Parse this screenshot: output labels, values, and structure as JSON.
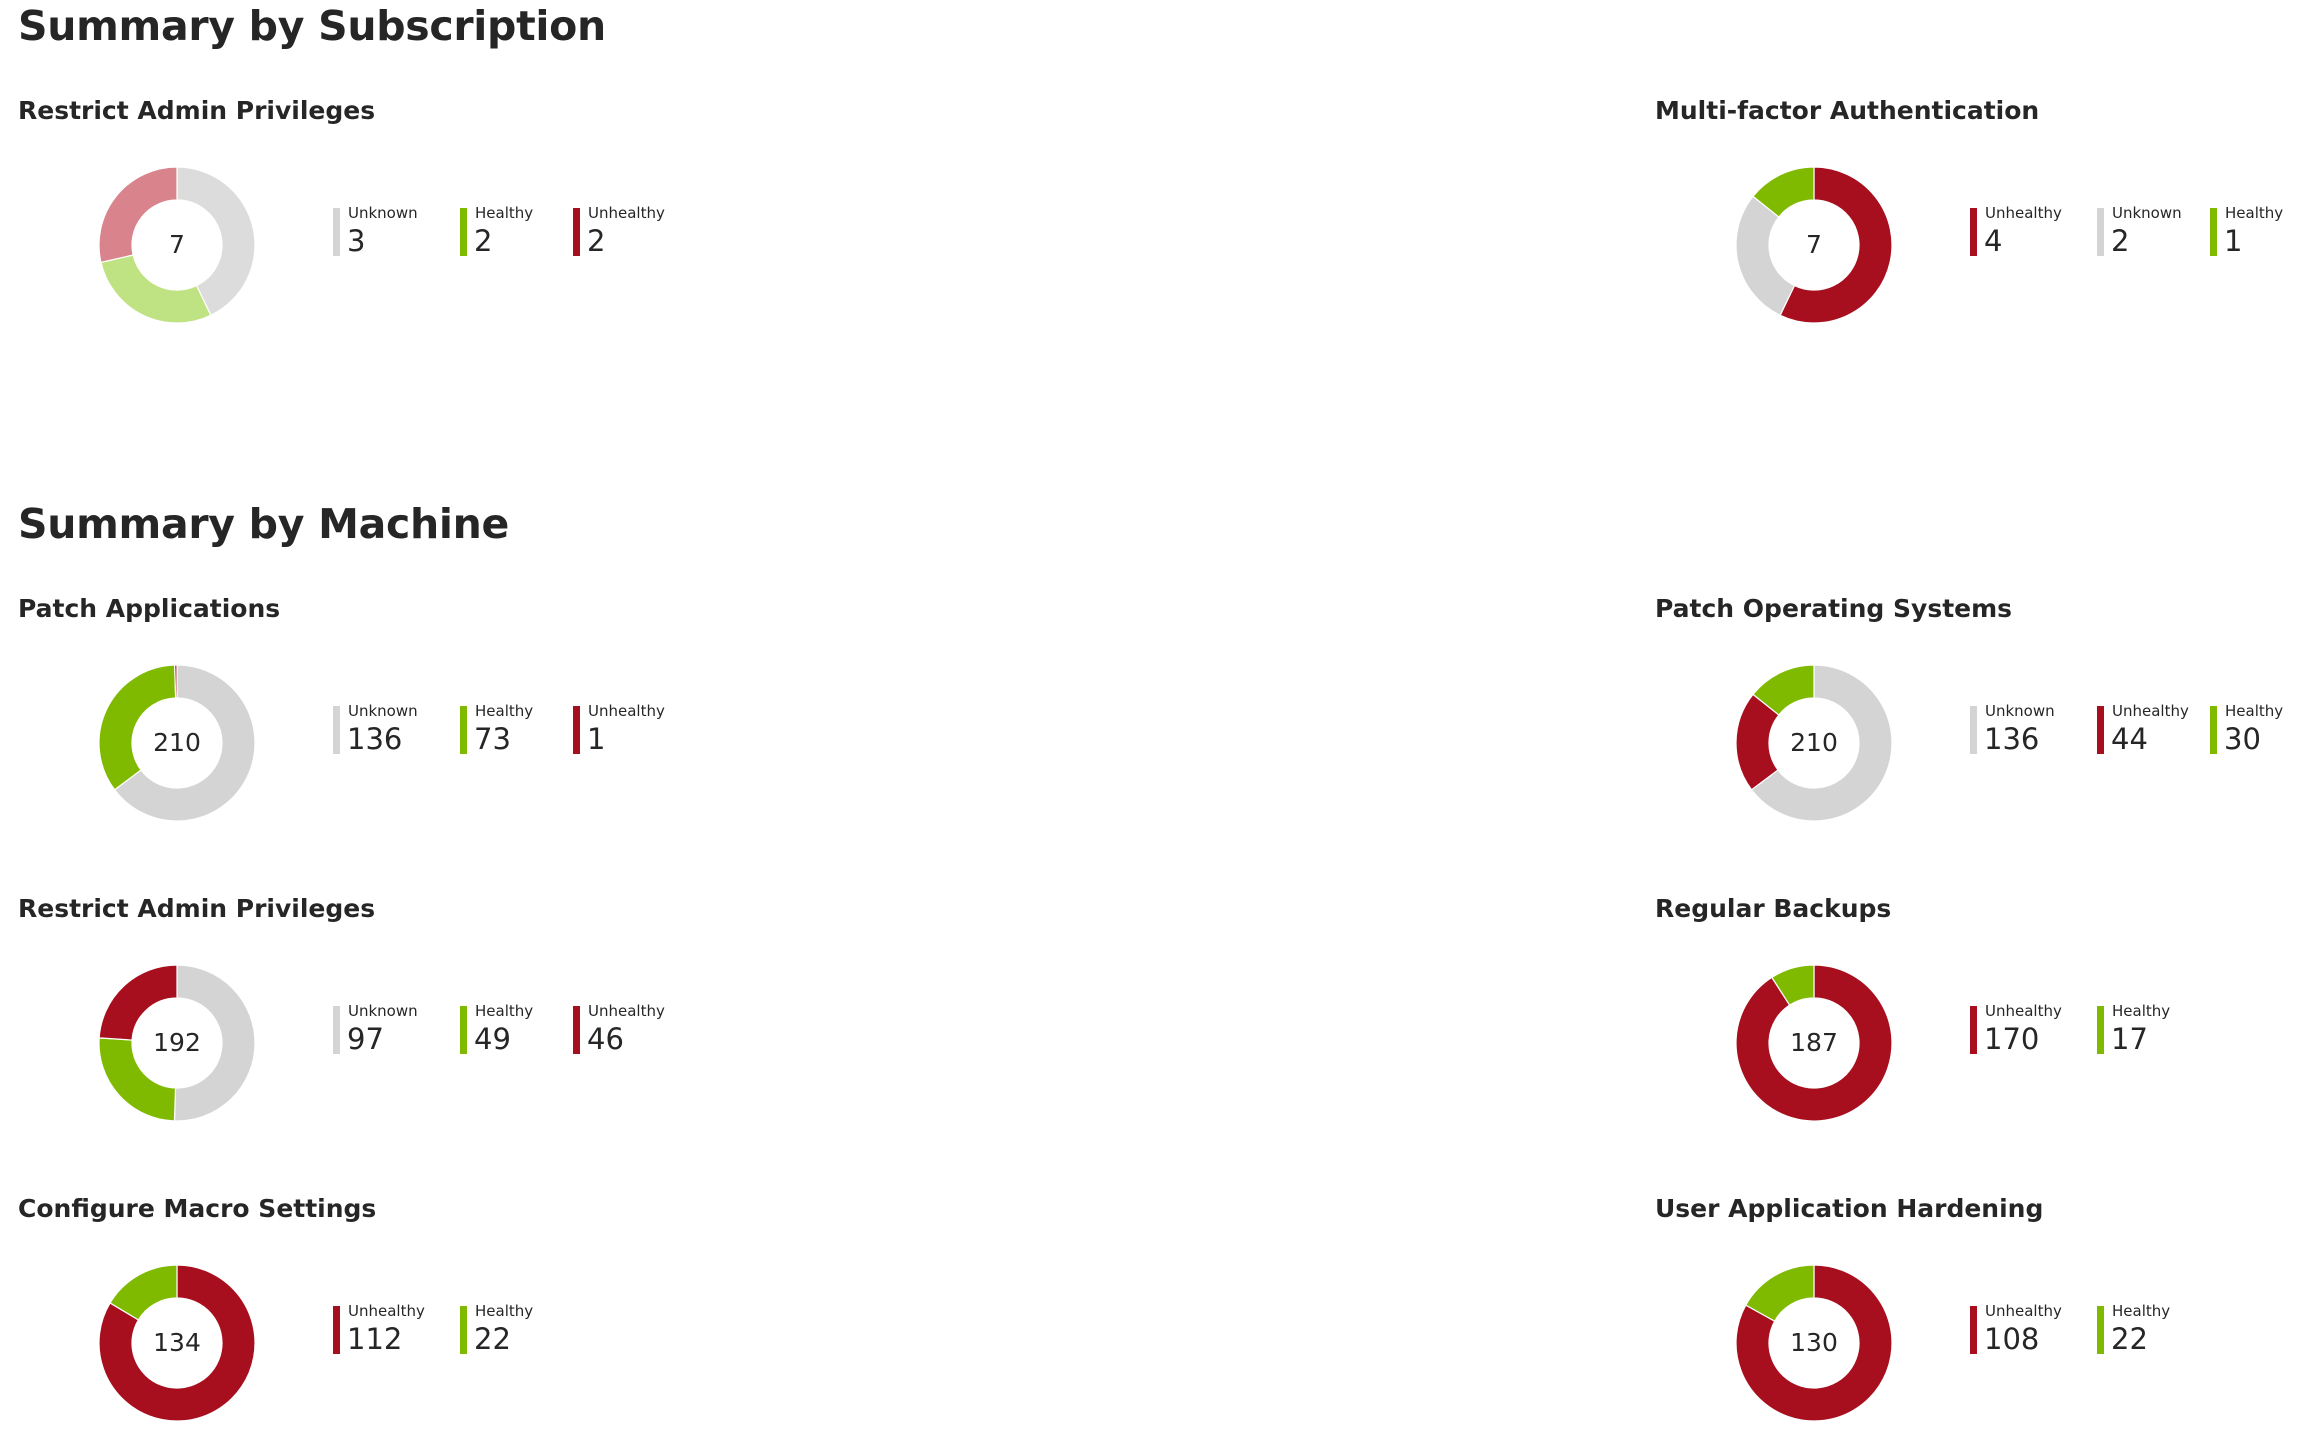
{
  "colors": {
    "unknown": "#d4d4d4",
    "healthy": "#7fba00",
    "unhealthy": "#a80f1e",
    "unknown_faded": "#dcdcdc",
    "healthy_faded": "#bfe283",
    "unhealthy_faded": "#d9848c"
  },
  "sections": [
    {
      "title": "Summary by Subscription",
      "panels": [
        {
          "title": "Restrict Admin Privileges",
          "total": "7",
          "faded": true,
          "legend": [
            {
              "label": "Unknown",
              "value": 3,
              "status": "unknown"
            },
            {
              "label": "Healthy",
              "value": 2,
              "status": "healthy"
            },
            {
              "label": "Unhealthy",
              "value": 2,
              "status": "unhealthy"
            }
          ]
        },
        {
          "title": "Multi-factor Authentication",
          "total": "7",
          "faded": false,
          "legend": [
            {
              "label": "Unhealthy",
              "value": 4,
              "status": "unhealthy"
            },
            {
              "label": "Unknown",
              "value": 2,
              "status": "unknown"
            },
            {
              "label": "Healthy",
              "value": 1,
              "status": "healthy"
            }
          ]
        }
      ]
    },
    {
      "title": "Summary by Machine",
      "panels": [
        {
          "title": "Patch Applications",
          "total": "210",
          "faded": false,
          "legend": [
            {
              "label": "Unknown",
              "value": 136,
              "status": "unknown"
            },
            {
              "label": "Healthy",
              "value": 73,
              "status": "healthy"
            },
            {
              "label": "Unhealthy",
              "value": 1,
              "status": "unhealthy"
            }
          ]
        },
        {
          "title": "Patch Operating Systems",
          "total": "210",
          "faded": false,
          "legend": [
            {
              "label": "Unknown",
              "value": 136,
              "status": "unknown"
            },
            {
              "label": "Unhealthy",
              "value": 44,
              "status": "unhealthy"
            },
            {
              "label": "Healthy",
              "value": 30,
              "status": "healthy"
            }
          ]
        },
        {
          "title": "Restrict Admin Privileges",
          "total": "192",
          "faded": false,
          "legend": [
            {
              "label": "Unknown",
              "value": 97,
              "status": "unknown"
            },
            {
              "label": "Healthy",
              "value": 49,
              "status": "healthy"
            },
            {
              "label": "Unhealthy",
              "value": 46,
              "status": "unhealthy"
            }
          ]
        },
        {
          "title": "Regular Backups",
          "total": "187",
          "faded": false,
          "legend": [
            {
              "label": "Unhealthy",
              "value": 170,
              "status": "unhealthy"
            },
            {
              "label": "Healthy",
              "value": 17,
              "status": "healthy"
            }
          ]
        },
        {
          "title": "Configure Macro Settings",
          "total": "134",
          "faded": false,
          "legend": [
            {
              "label": "Unhealthy",
              "value": 112,
              "status": "unhealthy"
            },
            {
              "label": "Healthy",
              "value": 22,
              "status": "healthy"
            }
          ]
        },
        {
          "title": "User Application Hardening",
          "total": "130",
          "faded": false,
          "legend": [
            {
              "label": "Unhealthy",
              "value": 108,
              "status": "unhealthy"
            },
            {
              "label": "Healthy",
              "value": 22,
              "status": "healthy"
            }
          ]
        }
      ]
    }
  ]
}
